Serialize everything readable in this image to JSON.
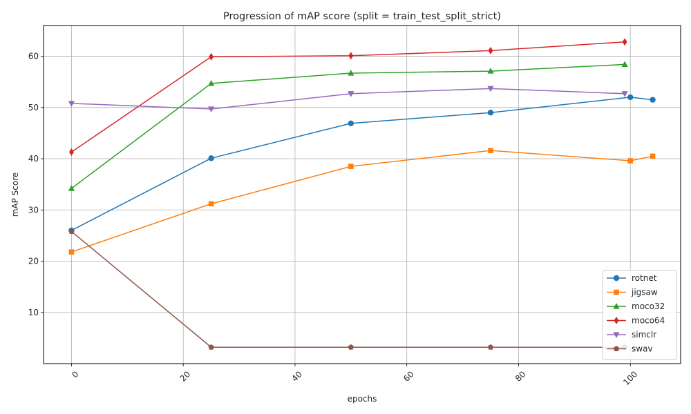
{
  "chart_data": {
    "type": "line",
    "title": "Progression of mAP score (split = train_test_split_strict)",
    "xlabel": "epochs",
    "ylabel": "mAP Score",
    "xlim": [
      -5,
      109
    ],
    "ylim": [
      0,
      66
    ],
    "xticks": [
      0,
      20,
      40,
      60,
      80,
      100
    ],
    "yticks": [
      10,
      20,
      30,
      40,
      50,
      60
    ],
    "grid": true,
    "legend_position": "lower-right",
    "series": [
      {
        "name": "rotnet",
        "color": "#1f77b4",
        "marker": "circle",
        "x": [
          0,
          25,
          50,
          75,
          100,
          104
        ],
        "y": [
          26.0,
          40.1,
          46.9,
          49.0,
          52.0,
          51.5
        ]
      },
      {
        "name": "jigsaw",
        "color": "#ff7f0e",
        "marker": "square",
        "x": [
          0,
          25,
          50,
          75,
          100,
          104
        ],
        "y": [
          21.8,
          31.2,
          38.5,
          41.6,
          39.6,
          40.5
        ]
      },
      {
        "name": "moco32",
        "color": "#2ca02c",
        "marker": "triangle-up",
        "x": [
          0,
          25,
          50,
          75,
          99
        ],
        "y": [
          34.2,
          54.7,
          56.7,
          57.1,
          58.4
        ]
      },
      {
        "name": "moco64",
        "color": "#d62728",
        "marker": "diamond",
        "x": [
          0,
          25,
          50,
          75,
          99
        ],
        "y": [
          41.3,
          59.9,
          60.1,
          61.1,
          62.8
        ]
      },
      {
        "name": "simclr",
        "color": "#9467bd",
        "marker": "triangle-down",
        "x": [
          0,
          25,
          50,
          75,
          99
        ],
        "y": [
          50.8,
          49.7,
          52.7,
          53.7,
          52.7
        ]
      },
      {
        "name": "swav",
        "color": "#8c564b",
        "marker": "pentagon",
        "x": [
          0,
          25,
          50,
          75,
          99
        ],
        "y": [
          25.8,
          3.2,
          3.2,
          3.2,
          3.2
        ]
      }
    ]
  }
}
